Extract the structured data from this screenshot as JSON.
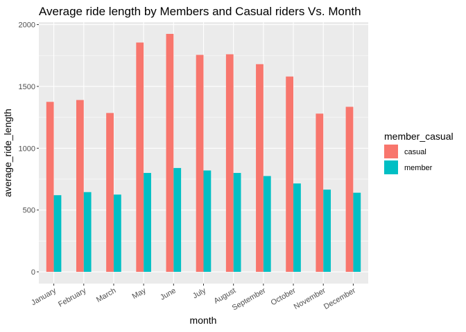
{
  "chart_data": {
    "type": "bar",
    "title": "Average ride length by Members and Casual riders Vs. Month",
    "xlabel": "month",
    "ylabel": "average_ride_length",
    "categories": [
      "January",
      "February",
      "March",
      "May",
      "June",
      "July",
      "August",
      "September",
      "October",
      "November",
      "December"
    ],
    "series": [
      {
        "name": "casual",
        "color": "#F8766D",
        "values": [
          1375,
          1390,
          1285,
          1855,
          1925,
          1755,
          1760,
          1680,
          1580,
          1280,
          1335
        ]
      },
      {
        "name": "member",
        "color": "#00BFC4",
        "values": [
          620,
          645,
          625,
          800,
          840,
          820,
          800,
          775,
          715,
          665,
          640
        ]
      }
    ],
    "ylim": [
      -95,
      2020
    ],
    "yticks": [
      0,
      500,
      1000,
      1500,
      2000
    ],
    "grid": true,
    "panel_background": "#EBEBEB",
    "legend": {
      "title": "member_casual",
      "placement": "right"
    }
  }
}
